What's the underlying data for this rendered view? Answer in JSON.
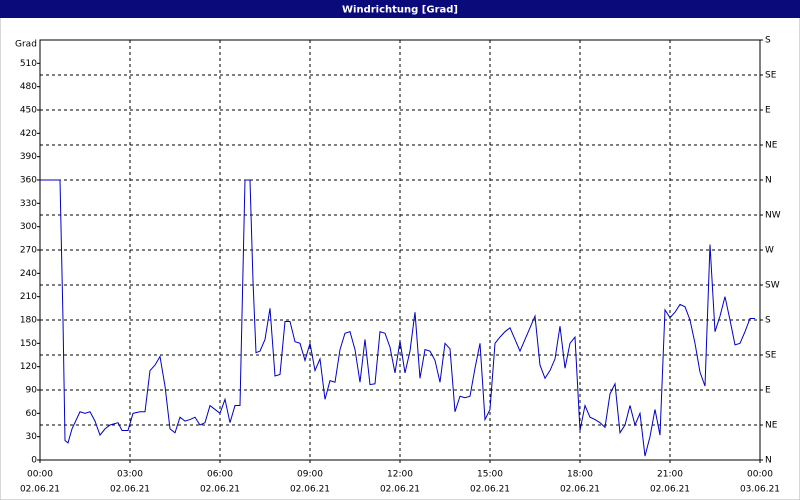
{
  "chart_data": {
    "type": "line",
    "title": "Windrichtung [Grad]",
    "y_label": "Grad",
    "x": [
      0,
      20,
      40,
      46,
      50,
      56,
      64,
      80,
      90,
      100,
      110,
      120,
      130,
      140,
      156,
      164,
      176,
      186,
      200,
      210,
      220,
      230,
      240,
      250,
      260,
      270,
      280,
      290,
      300,
      310,
      320,
      330,
      340,
      350,
      360,
      370,
      380,
      390,
      400,
      410,
      420,
      426,
      432,
      440,
      450,
      460,
      470,
      480,
      490,
      500,
      510,
      520,
      530,
      540,
      550,
      560,
      570,
      580,
      590,
      600,
      610,
      620,
      630,
      640,
      650,
      660,
      670,
      680,
      690,
      700,
      710,
      720,
      730,
      740,
      750,
      760,
      770,
      780,
      790,
      800,
      810,
      820,
      830,
      840,
      850,
      860,
      870,
      880,
      890,
      900,
      910,
      920,
      930,
      940,
      950,
      960,
      970,
      980,
      990,
      1000,
      1010,
      1020,
      1030,
      1040,
      1050,
      1060,
      1070,
      1080,
      1090,
      1100,
      1110,
      1120,
      1130,
      1140,
      1150,
      1160,
      1170,
      1180,
      1190,
      1200,
      1210,
      1220,
      1230,
      1240,
      1250,
      1260,
      1270,
      1280,
      1290,
      1300,
      1310,
      1320,
      1330,
      1340,
      1350,
      1360,
      1370,
      1380,
      1390,
      1400,
      1410,
      1420,
      1430
    ],
    "series": [
      {
        "color": "#0000c8",
        "values": [
          360,
          360,
          360,
          180,
          25,
          22,
          40,
          62,
          60,
          62,
          50,
          32,
          40,
          45,
          48,
          38,
          38,
          60,
          62,
          62,
          115,
          122,
          133,
          95,
          40,
          35,
          55,
          50,
          52,
          55,
          45,
          48,
          70,
          65,
          60,
          78,
          48,
          70,
          70,
          360,
          360,
          230,
          138,
          140,
          155,
          195,
          108,
          110,
          178,
          178,
          152,
          150,
          128,
          150,
          115,
          130,
          78,
          102,
          100,
          142,
          163,
          165,
          142,
          100,
          155,
          97,
          98,
          165,
          163,
          145,
          112,
          153,
          112,
          140,
          190,
          105,
          142,
          140,
          128,
          100,
          150,
          143,
          62,
          82,
          80,
          82,
          118,
          150,
          52,
          65,
          150,
          158,
          165,
          170,
          155,
          140,
          155,
          170,
          185,
          122,
          105,
          115,
          130,
          172,
          118,
          150,
          158,
          38,
          70,
          55,
          52,
          48,
          42,
          85,
          98,
          35,
          45,
          70,
          45,
          60,
          5,
          30,
          65,
          32,
          193,
          183,
          190,
          200,
          197,
          180,
          150,
          113,
          95,
          277,
          165,
          185,
          210,
          180,
          148,
          150,
          165,
          182,
          182
        ]
      }
    ],
    "xlim": [
      0,
      1440
    ],
    "xticks": [
      {
        "value": 0,
        "label": "00:00",
        "date": "02.06.21"
      },
      {
        "value": 180,
        "label": "03:00",
        "date": "02.06.21"
      },
      {
        "value": 360,
        "label": "06:00",
        "date": "02.06.21"
      },
      {
        "value": 540,
        "label": "09:00",
        "date": "02.06.21"
      },
      {
        "value": 720,
        "label": "12:00",
        "date": "02.06.21"
      },
      {
        "value": 900,
        "label": "15:00",
        "date": "02.06.21"
      },
      {
        "value": 1080,
        "label": "18:00",
        "date": "02.06.21"
      },
      {
        "value": 1260,
        "label": "21:00",
        "date": "02.06.21"
      },
      {
        "value": 1440,
        "label": "00:00",
        "date": "03.06.21"
      }
    ],
    "ylim": [
      0,
      540
    ],
    "yticks": [
      0,
      30,
      60,
      90,
      120,
      150,
      180,
      210,
      240,
      270,
      300,
      330,
      360,
      390,
      420,
      450,
      480,
      510
    ],
    "y2lim": [
      0,
      540
    ],
    "y2ticks": [
      {
        "value": 0,
        "label": "N"
      },
      {
        "value": 45,
        "label": "NE"
      },
      {
        "value": 90,
        "label": "E"
      },
      {
        "value": 135,
        "label": "SE"
      },
      {
        "value": 180,
        "label": "S"
      },
      {
        "value": 225,
        "label": "SW"
      },
      {
        "value": 270,
        "label": "W"
      },
      {
        "value": 315,
        "label": "NW"
      },
      {
        "value": 360,
        "label": "N"
      },
      {
        "value": 405,
        "label": "NE"
      },
      {
        "value": 450,
        "label": "E"
      },
      {
        "value": 495,
        "label": "SE"
      },
      {
        "value": 540,
        "label": "S"
      }
    ],
    "grid": true
  }
}
